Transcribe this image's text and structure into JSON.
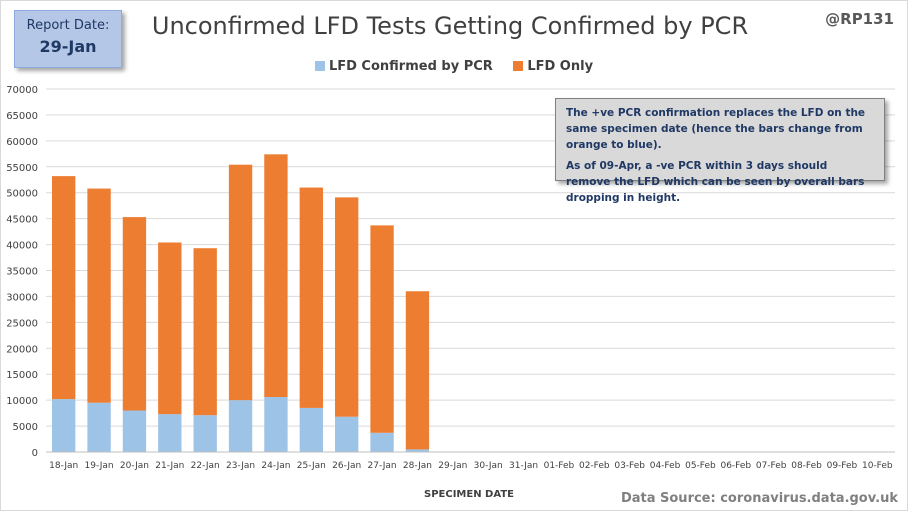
{
  "report": {
    "label": "Report Date:",
    "date": "29-Jan"
  },
  "handle": "@RP131",
  "source": "Data Source: coronavirus.data.gov.uk",
  "note": {
    "line1": "The +ve PCR confirmation replaces the LFD on the same specimen date (hence the bars change from orange to blue).",
    "line2": "As of 09-Apr, a -ve PCR within 3 days should remove the LFD which can be seen by overall bars dropping  in height."
  },
  "colors": {
    "confirmed": "#9dc3e6",
    "lfd_only": "#ed7d31",
    "grid": "#d9d9d9",
    "axis_text": "#404040"
  },
  "chart_data": {
    "type": "bar",
    "stacked": true,
    "title": "Unconfirmed LFD Tests Getting Confirmed by PCR",
    "xlabel": "SPECIMEN DATE",
    "ylabel": "",
    "ylim": [
      0,
      70000
    ],
    "yticks": [
      0,
      5000,
      10000,
      15000,
      20000,
      25000,
      30000,
      35000,
      40000,
      45000,
      50000,
      55000,
      60000,
      65000,
      70000
    ],
    "grid": true,
    "legend_position": "top",
    "categories": [
      "18-Jan",
      "19-Jan",
      "20-Jan",
      "21-Jan",
      "22-Jan",
      "23-Jan",
      "24-Jan",
      "25-Jan",
      "26-Jan",
      "27-Jan",
      "28-Jan",
      "29-Jan",
      "30-Jan",
      "31-Jan",
      "01-Feb",
      "02-Feb",
      "03-Feb",
      "04-Feb",
      "05-Feb",
      "06-Feb",
      "07-Feb",
      "08-Feb",
      "09-Feb",
      "10-Feb"
    ],
    "series": [
      {
        "name": "LFD Confirmed by PCR",
        "values": [
          10200,
          9500,
          8000,
          7300,
          7100,
          10000,
          10600,
          8500,
          6800,
          3700,
          500,
          0,
          0,
          0,
          0,
          0,
          0,
          0,
          0,
          0,
          0,
          0,
          0,
          0
        ]
      },
      {
        "name": "LFD Only",
        "values": [
          43000,
          41300,
          37300,
          33100,
          32200,
          45400,
          46800,
          42500,
          42300,
          40000,
          30500,
          0,
          0,
          0,
          0,
          0,
          0,
          0,
          0,
          0,
          0,
          0,
          0,
          0
        ]
      }
    ]
  }
}
